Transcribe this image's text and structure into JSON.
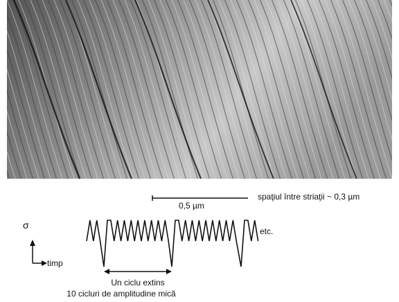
{
  "figure": {
    "scale_bar_label": "0,5 µm",
    "spacing_note": "spaţiul între striaţii ~ 0,3 µm",
    "stress_axis": "σ",
    "time_axis": "timp",
    "continuation": "etc.",
    "cycle_label": "Un ciclu extins",
    "cycles_note": "10 cicluri de amplitudine mică"
  }
}
